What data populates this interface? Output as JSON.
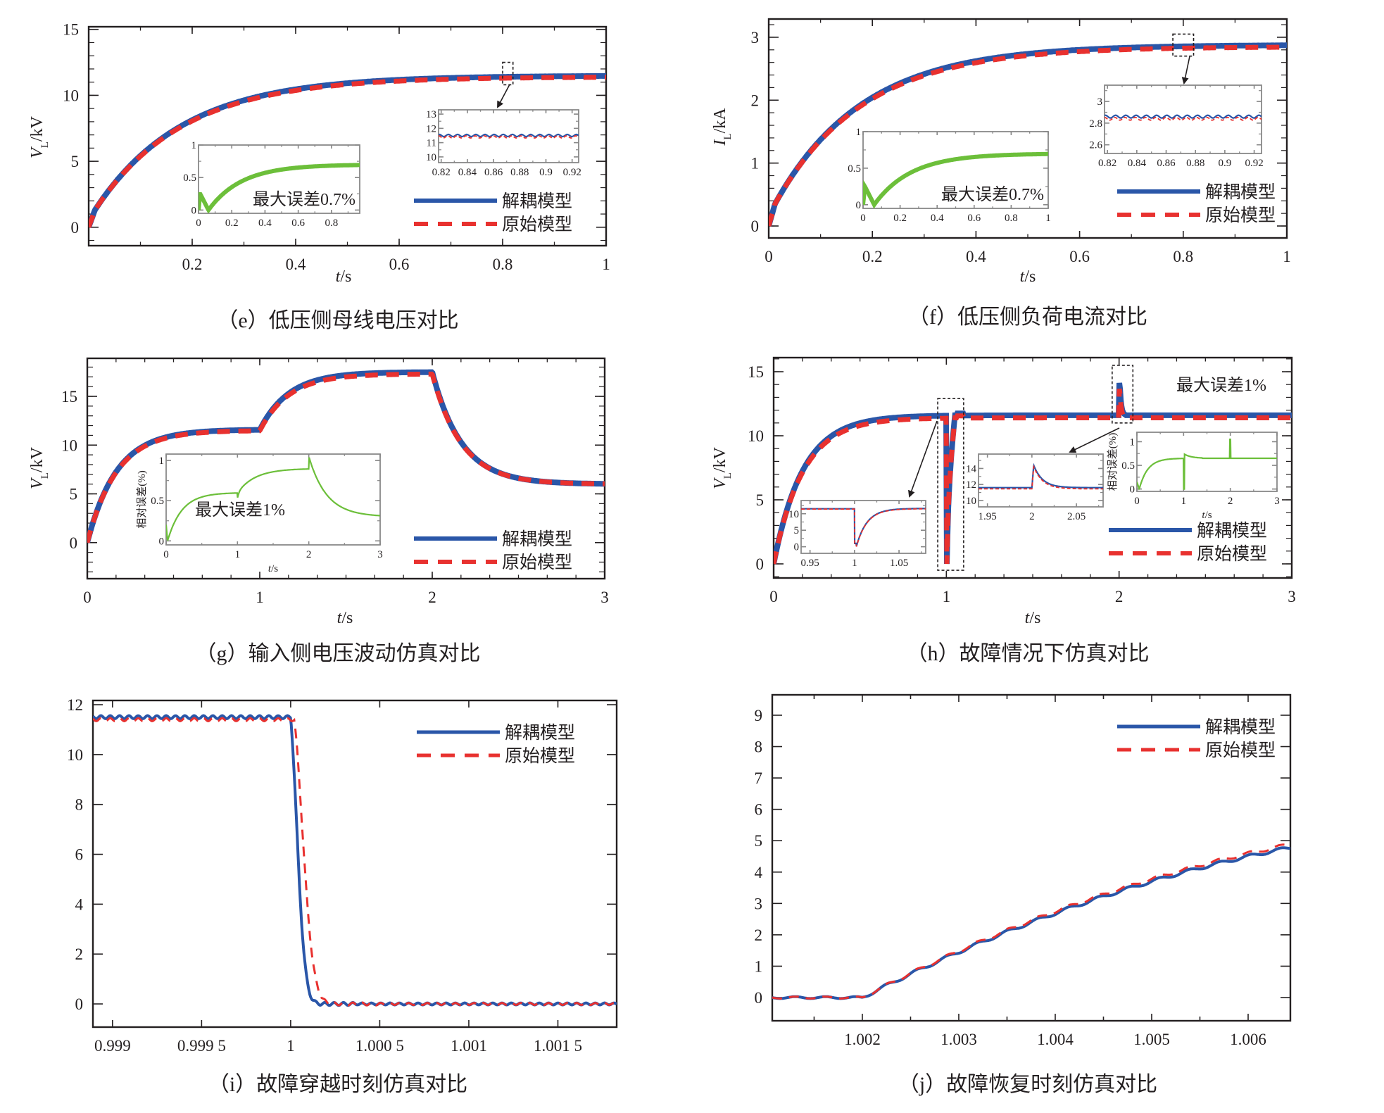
{
  "colors": {
    "decoupled": "#2a56a8",
    "original": "#e8312f",
    "error": "#6cbf3a",
    "axis": "#231f20",
    "inset_axis": "#888888"
  },
  "legend": {
    "decoupled": "解耦模型",
    "original": "原始模型"
  },
  "chart_data": [
    {
      "id": "e",
      "type": "line",
      "caption": "（e）低压侧母线电压对比",
      "ylabel_main": "V",
      "ylabel_sub": "L",
      "ylabel_unit": "/kV",
      "xlabel_italic": "t",
      "xlabel_unit": "/s",
      "xlim": [
        0,
        1
      ],
      "ylim": [
        -1.4,
        15.2
      ],
      "xticks": [
        0.2,
        0.4,
        0.6,
        0.8,
        1
      ],
      "xtick_labels": [
        "0.2",
        "0.4",
        "0.6",
        "0.8",
        "1"
      ],
      "yticks": [
        0,
        5,
        10,
        15
      ],
      "ytick_labels": [
        "0",
        "5",
        "10",
        "15"
      ],
      "series": [
        {
          "name": "解耦模型",
          "model": "first_order",
          "final": 11.5,
          "tau": 0.17,
          "jump": 1.3
        },
        {
          "name": "原始模型",
          "model": "first_order",
          "final": 11.4,
          "tau": 0.17,
          "jump": 1.3
        }
      ],
      "zoom_box": {
        "x": [
          0.8,
          0.82
        ],
        "y": [
          10.8,
          12.5
        ]
      },
      "insets": [
        {
          "kind": "error",
          "xlim": [
            0,
            0.97
          ],
          "ylim": [
            -0.05,
            1
          ],
          "xticks": [
            0,
            0.2,
            0.4,
            0.6,
            0.8
          ],
          "xtick_labels": [
            "0",
            "0.2",
            "0.4",
            "0.6",
            "0.8"
          ],
          "yticks": [
            0,
            0.5,
            1
          ],
          "ytick_labels": [
            "0",
            "0.5",
            "1"
          ],
          "final": 0.7,
          "note": "最大误差0.7%"
        },
        {
          "kind": "zoom",
          "xlim": [
            0.818,
            0.925
          ],
          "ylim": [
            9.6,
            13.3
          ],
          "xticks": [
            0.82,
            0.84,
            0.86,
            0.88,
            0.9,
            0.92
          ],
          "xtick_labels": [
            "0.82",
            "0.84",
            "0.86",
            "0.88",
            "0.9",
            "0.92"
          ],
          "yticks": [
            10,
            11,
            12,
            13
          ],
          "ytick_labels": [
            "10",
            "11",
            "12",
            "13"
          ],
          "levels": [
            11.5,
            11.4
          ]
        }
      ]
    },
    {
      "id": "f",
      "type": "line",
      "caption": "（f）低压侧负荷电流对比",
      "ylabel_main": "I",
      "ylabel_sub": "L",
      "ylabel_unit": "/kA",
      "xlabel_italic": "t",
      "xlabel_unit": "/s",
      "xlim": [
        0,
        1
      ],
      "ylim": [
        -0.19,
        3.29
      ],
      "xticks": [
        0,
        0.2,
        0.4,
        0.6,
        0.8,
        1
      ],
      "xtick_labels": [
        "0",
        "0.2",
        "0.4",
        "0.6",
        "0.8",
        "1"
      ],
      "yticks": [
        0,
        1,
        2,
        3
      ],
      "ytick_labels": [
        "0",
        "1",
        "2",
        "3"
      ],
      "series": [
        {
          "name": "解耦模型",
          "model": "first_order",
          "final": 2.88,
          "tau": 0.17,
          "jump": 0.35
        },
        {
          "name": "原始模型",
          "model": "first_order",
          "final": 2.85,
          "tau": 0.17,
          "jump": 0.35
        }
      ],
      "zoom_box": {
        "x": [
          0.78,
          0.82
        ],
        "y": [
          2.7,
          3.05
        ]
      },
      "insets": [
        {
          "kind": "error",
          "xlim": [
            0,
            1
          ],
          "ylim": [
            -0.05,
            1
          ],
          "xticks": [
            0,
            0.2,
            0.4,
            0.6,
            0.8,
            1
          ],
          "xtick_labels": [
            "0",
            "0.2",
            "0.4",
            "0.6",
            "0.8",
            "1"
          ],
          "yticks": [
            0,
            0.5,
            1
          ],
          "ytick_labels": [
            "0",
            "0.5",
            "1"
          ],
          "final": 0.7,
          "note": "最大误差0.7%"
        },
        {
          "kind": "zoom",
          "xlim": [
            0.818,
            0.925
          ],
          "ylim": [
            2.52,
            3.15
          ],
          "xticks": [
            0.82,
            0.84,
            0.86,
            0.88,
            0.9,
            0.92
          ],
          "xtick_labels": [
            "0.82",
            "0.84",
            "0.86",
            "0.88",
            "0.9",
            "0.92"
          ],
          "yticks": [
            2.6,
            2.8,
            3
          ],
          "ytick_labels": [
            "2.6",
            "2.8",
            "3"
          ],
          "levels": [
            2.86,
            2.84
          ]
        }
      ]
    },
    {
      "id": "g",
      "type": "line",
      "caption": "（g）输入侧电压波动仿真对比",
      "ylabel_main": "V",
      "ylabel_sub": "L",
      "ylabel_unit": "/kV",
      "xlabel_italic": "t",
      "xlabel_unit": "/s",
      "xlim": [
        0,
        3
      ],
      "ylim": [
        -3.7,
        18.9
      ],
      "xticks": [
        0,
        1,
        2,
        3
      ],
      "xtick_labels": [
        "0",
        "1",
        "2",
        "3"
      ],
      "yticks": [
        0,
        5,
        10,
        15
      ],
      "ytick_labels": [
        "0",
        "5",
        "10",
        "15"
      ],
      "series": [
        {
          "name": "解耦模型",
          "model": "steps",
          "levels": [
            11.6,
            17.5,
            6.0
          ],
          "tau": 0.17
        },
        {
          "name": "原始模型",
          "model": "steps",
          "levels": [
            11.5,
            17.3,
            6.0
          ],
          "tau": 0.17
        }
      ],
      "insets": [
        {
          "kind": "error_steps",
          "xlim": [
            0,
            3
          ],
          "ylim": [
            -0.05,
            1.08
          ],
          "xticks": [
            0,
            1,
            2,
            3
          ],
          "xtick_labels": [
            "0",
            "1",
            "2",
            "3"
          ],
          "yticks": [
            0,
            0.5,
            1
          ],
          "ytick_labels": [
            "0",
            "0.5",
            "1"
          ],
          "levels": [
            0.6,
            0.9,
            0.3
          ],
          "ylabel": "相对误差(%)",
          "xlabel_italic": "t",
          "xlabel_unit": "/s",
          "note": "最大误差1%"
        }
      ]
    },
    {
      "id": "h",
      "type": "line",
      "caption": "（h）故障情况下仿真对比",
      "ylabel_main": "V",
      "ylabel_sub": "L",
      "ylabel_unit": "/kV",
      "xlabel_italic": "t",
      "xlabel_unit": "/s",
      "xlim": [
        0,
        3
      ],
      "ylim": [
        -1.1,
        16.1
      ],
      "xticks": [
        0,
        1,
        2,
        3
      ],
      "xtick_labels": [
        "0",
        "1",
        "2",
        "3"
      ],
      "yticks": [
        0,
        5,
        10,
        15
      ],
      "ytick_labels": [
        "0",
        "5",
        "10",
        "15"
      ],
      "series": [
        {
          "name": "解耦模型",
          "model": "fault",
          "final": 11.6,
          "tau": 0.17,
          "peak": 14.5
        },
        {
          "name": "原始模型",
          "model": "fault",
          "final": 11.4,
          "tau": 0.17,
          "peak": 14.0
        }
      ],
      "note": "最大误差1%",
      "zoom_boxes": [
        {
          "x": [
            0.95,
            1.1
          ],
          "y": [
            -0.5,
            12.9
          ]
        },
        {
          "x": [
            1.96,
            2.08
          ],
          "y": [
            11.0,
            15.5
          ]
        }
      ],
      "insets": [
        {
          "kind": "zoom_dip",
          "xlim": [
            0.94,
            1.08
          ],
          "ylim": [
            -2,
            14
          ],
          "xticks": [
            0.95,
            1,
            1.05
          ],
          "xtick_labels": [
            "0.95",
            "1",
            "1.05"
          ],
          "yticks": [
            0,
            5,
            10
          ],
          "ytick_labels": [
            "0",
            "5",
            "10"
          ]
        },
        {
          "kind": "zoom_spike",
          "xlim": [
            1.94,
            2.08
          ],
          "ylim": [
            9.2,
            15.8
          ],
          "xticks": [
            1.95,
            2,
            2.05
          ],
          "xtick_labels": [
            "1.95",
            "2",
            "2.05"
          ],
          "yticks": [
            10,
            12,
            14
          ],
          "ytick_labels": [
            "10",
            "12",
            "14"
          ]
        },
        {
          "kind": "error_fault",
          "xlim": [
            0,
            3
          ],
          "ylim": [
            -0.05,
            1.2
          ],
          "xticks": [
            0,
            1,
            2,
            3
          ],
          "xtick_labels": [
            "0",
            "1",
            "2",
            "3"
          ],
          "yticks": [
            0,
            0.5,
            1
          ],
          "ytick_labels": [
            "0",
            "0.5",
            "1"
          ],
          "final": 0.65,
          "ylabel": "相对误差(%)",
          "xlabel_italic": "t",
          "xlabel_unit": "/s"
        }
      ]
    },
    {
      "id": "i",
      "type": "line",
      "caption": "（i）故障穿越时刻仿真对比",
      "xlim": [
        0.99889,
        1.00183
      ],
      "ylim": [
        -0.93,
        12.17
      ],
      "xticks": [
        0.999,
        0.9995,
        1,
        1.0005,
        1.001,
        1.0015
      ],
      "xtick_labels": [
        "0.999",
        "0.999 5",
        "1",
        "1.000 5",
        "1.001",
        "1.001 5"
      ],
      "yticks": [
        0,
        2,
        4,
        6,
        8,
        10,
        12
      ],
      "ytick_labels": [
        "0",
        "2",
        "4",
        "6",
        "8",
        "10",
        "12"
      ],
      "series": [
        {
          "name": "解耦模型",
          "model": "drop",
          "level": 11.5,
          "t0": 1.0,
          "width": 6e-05
        },
        {
          "name": "原始模型",
          "model": "drop",
          "level": 11.4,
          "t0": 1.00002,
          "width": 8e-05
        }
      ]
    },
    {
      "id": "j",
      "type": "line",
      "caption": "（j）故障恢复时刻仿真对比",
      "xlim": [
        1.001066,
        1.006438
      ],
      "ylim": [
        -0.74,
        9.65
      ],
      "xticks": [
        1.0015,
        1.002,
        1.0025,
        1.003,
        1.0035,
        1.004,
        1.0045,
        1.005,
        1.0055,
        1.006
      ],
      "xtick_labels": [
        "",
        "1.002",
        "",
        "1.003",
        "",
        "1.004",
        "",
        "1.005",
        "",
        "1.006"
      ],
      "yticks": [
        0,
        1,
        2,
        3,
        4,
        5,
        6,
        7,
        8,
        9
      ],
      "ytick_labels": [
        "0",
        "1",
        "2",
        "3",
        "4",
        "5",
        "6",
        "7",
        "8",
        "9"
      ],
      "series": [
        {
          "name": "解耦模型",
          "model": "rise",
          "t0": 1.002,
          "end_value": 4.78
        },
        {
          "name": "原始模型",
          "model": "rise",
          "t0": 1.002,
          "end_value": 4.88
        }
      ]
    }
  ]
}
